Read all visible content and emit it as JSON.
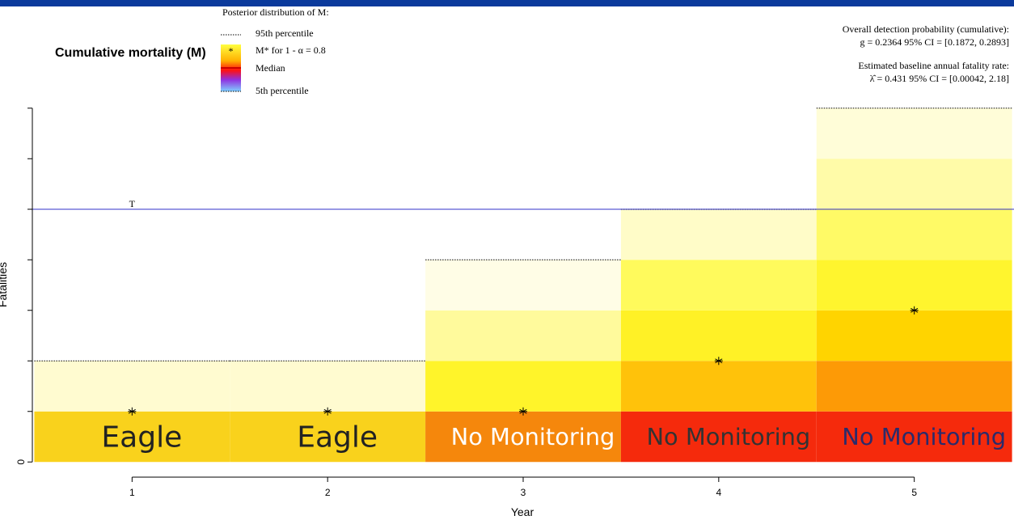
{
  "chart_data": {
    "type": "stacked-heatmap",
    "title": "Cumulative mortality (M)",
    "x_label": "Year",
    "y_label": "Fatalities",
    "xlim": [
      0.49,
      5.51
    ],
    "ylim": [
      -0.3,
      7.3
    ],
    "xticks": [
      1,
      2,
      3,
      4,
      5
    ],
    "yticks": [
      0
    ],
    "yminor_ticks": [
      1,
      2,
      3,
      4,
      5,
      6,
      7
    ],
    "legend": {
      "title": "Posterior distribution of M:",
      "items": [
        "95th percentile",
        "M* for 1 - α = 0.8",
        "Median",
        "5th percentile"
      ]
    },
    "stats": [
      "Overall detection probability (cumulative):",
      "g = 0.2364 95% CI = [0.1872, 0.2893]",
      "Estimated baseline annual fatality rate:",
      "λ̂ = 0.431 95% CI = [0.00042, 2.18]"
    ],
    "threshold": {
      "value": 5,
      "label": "T",
      "color": "#3333cc"
    },
    "columns": [
      {
        "x": 1,
        "label": "Eagle",
        "label_color": "#222222",
        "star": 1,
        "p95": 2,
        "segments": [
          {
            "value": 1,
            "color": "#f9d21c"
          },
          {
            "value": 1,
            "color": "#fffbd0"
          }
        ]
      },
      {
        "x": 2,
        "label": "Eagle",
        "label_color": "#222222",
        "star": 1,
        "p95": 2,
        "segments": [
          {
            "value": 1,
            "color": "#f9d21c"
          },
          {
            "value": 1,
            "color": "#fffbd0"
          }
        ]
      },
      {
        "x": 3,
        "label": "No Monitoring",
        "label_color": "#ffffff",
        "star": 1,
        "p95": 4,
        "segments": [
          {
            "value": 1,
            "color": "#f5870c"
          },
          {
            "value": 1,
            "color": "#fff42a"
          },
          {
            "value": 1,
            "color": "#fffa9c"
          },
          {
            "value": 1,
            "color": "#fffde6"
          }
        ]
      },
      {
        "x": 4,
        "label": "No Monitoring",
        "label_color": "#333333",
        "star": 2,
        "p95": 5,
        "segments": [
          {
            "value": 1,
            "color": "#f52a0c"
          },
          {
            "value": 1,
            "color": "#ffc20a"
          },
          {
            "value": 1,
            "color": "#fff126"
          },
          {
            "value": 1,
            "color": "#fffa5c"
          },
          {
            "value": 1,
            "color": "#fffcc8"
          }
        ]
      },
      {
        "x": 5,
        "label": "No Monitoring",
        "label_color": "#2b2b6b",
        "star": 3,
        "p95": 7,
        "segments": [
          {
            "value": 1,
            "color": "#f52a0c"
          },
          {
            "value": 1,
            "color": "#fd9a06"
          },
          {
            "value": 1,
            "color": "#ffd400"
          },
          {
            "value": 1,
            "color": "#fff52e"
          },
          {
            "value": 1,
            "color": "#fffa66"
          },
          {
            "value": 1,
            "color": "#fffba8"
          },
          {
            "value": 1,
            "color": "#fffdd8"
          }
        ]
      }
    ]
  }
}
